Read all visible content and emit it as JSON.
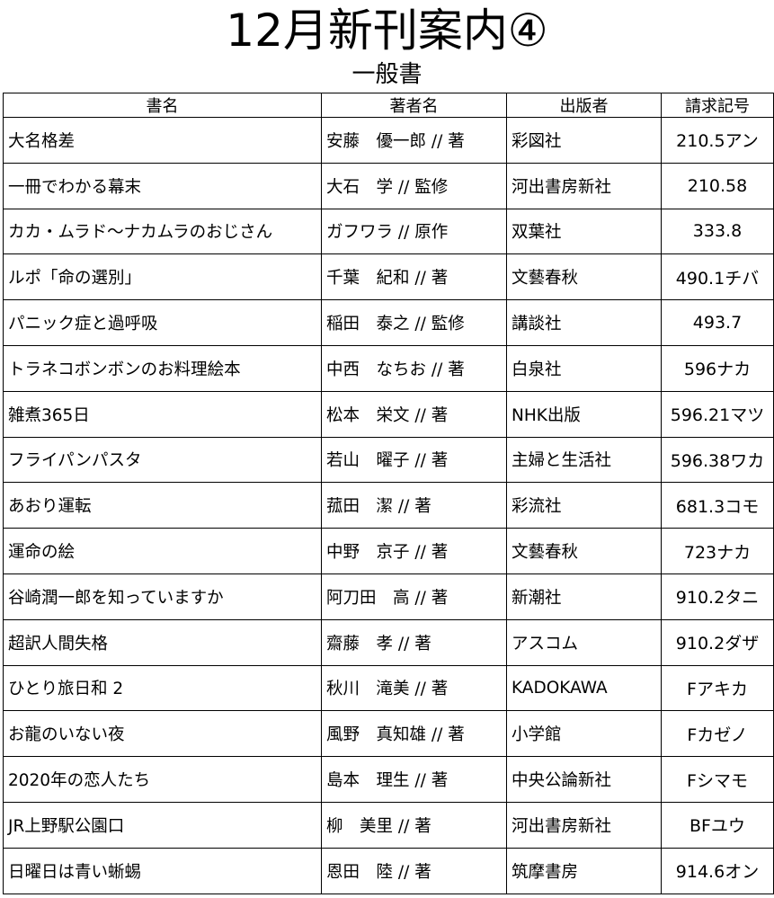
{
  "title": "12月新刊案内④",
  "subtitle": "一般書",
  "columns": [
    "書名",
    "著者名",
    "出版者",
    "請求記号"
  ],
  "rows": [
    [
      "大名格差",
      "安藤　優一郎 // 著",
      "彩図社",
      "210.5アン"
    ],
    [
      "一冊でわかる幕末",
      "大石　学 // 監修",
      "河出書房新社",
      "210.58"
    ],
    [
      "カカ・ムラド～ナカムラのおじさん",
      "ガフワラ // 原作",
      "双葉社",
      "333.8"
    ],
    [
      "ルポ「命の選別」",
      "千葉　紀和 // 著",
      "文藝春秋",
      "490.1チバ"
    ],
    [
      "パニック症と過呼吸",
      "稲田　泰之 // 監修",
      "講談社",
      "493.7"
    ],
    [
      "トラネコボンボンのお料理絵本",
      "中西　なちお // 著",
      "白泉社",
      "596ナカ"
    ],
    [
      "雑煮365日",
      "松本　栄文 // 著",
      "NHK出版",
      "596.21マツ"
    ],
    [
      "フライパンパスタ",
      "若山　曜子 // 著",
      "主婦と生活社",
      "596.38ワカ"
    ],
    [
      "あおり運転",
      "菰田　潔 // 著",
      "彩流社",
      "681.3コモ"
    ],
    [
      "運命の絵",
      "中野　京子 // 著",
      "文藝春秋",
      "723ナカ"
    ],
    [
      "谷崎潤一郎を知っていますか",
      "阿刀田　高 // 著",
      "新潮社",
      "910.2タニ"
    ],
    [
      "超訳人間失格",
      "齋藤　孝 // 著",
      "アスコム",
      "910.2ダザ"
    ],
    [
      "ひとり旅日和 2",
      "秋川　滝美 // 著",
      "KADOKAWA",
      "Fアキカ"
    ],
    [
      "お龍のいない夜",
      "風野　真知雄 // 著",
      "小学館",
      "Fカゼノ"
    ],
    [
      "2020年の恋人たち",
      "島本　理生 // 著",
      "中央公論新社",
      "Fシマモ"
    ],
    [
      "JR上野駅公園口",
      "柳　美里 // 著",
      "河出書房新社",
      "BFユウ"
    ],
    [
      "日曜日は青い蜥蜴",
      "恩田　陸 // 著",
      "筑摩書房",
      "914.6オン"
    ]
  ]
}
